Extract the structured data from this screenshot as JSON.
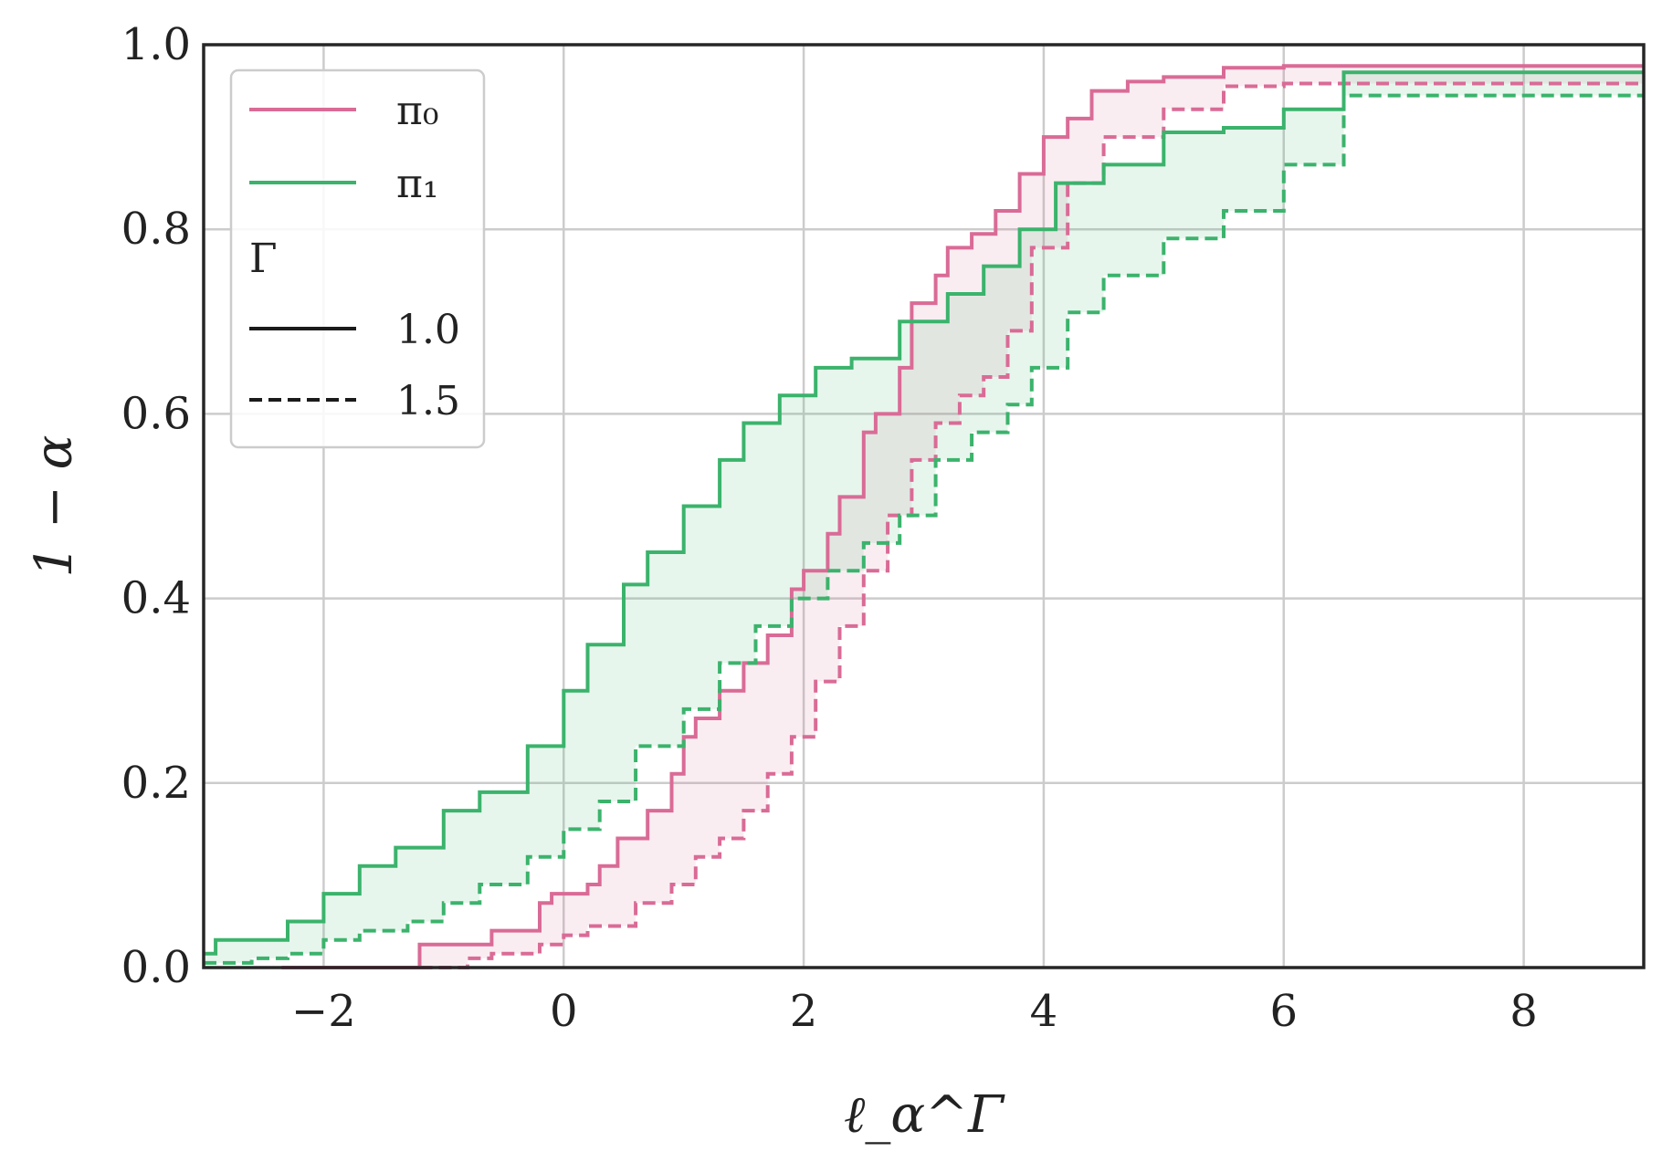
{
  "chart_data": {
    "type": "line",
    "title": "",
    "xlabel": "ℓ_α^Γ",
    "ylabel": "1 − α",
    "xlim": [
      -3,
      9
    ],
    "ylim": [
      0,
      1
    ],
    "xticks": [
      -2,
      0,
      2,
      4,
      6,
      8
    ],
    "xtick_labels": [
      "−2",
      "0",
      "2",
      "4",
      "6",
      "8"
    ],
    "yticks": [
      0.0,
      0.2,
      0.4,
      0.6,
      0.8,
      1.0
    ],
    "ytick_labels": [
      "0.0",
      "0.2",
      "0.4",
      "0.6",
      "0.8",
      "1.0"
    ],
    "grid": true,
    "legend": {
      "placement": "top-left",
      "policy_entries": [
        {
          "label": "π₀",
          "color": "#d96b96"
        },
        {
          "label": "π₁",
          "color": "#3bb36c"
        }
      ],
      "gamma_title": "Γ",
      "gamma_entries": [
        {
          "label": "1.0",
          "style": "solid"
        },
        {
          "label": "1.5",
          "style": "dashed"
        }
      ]
    },
    "bands": [
      {
        "policy": "π₀",
        "color": "#d96b96",
        "lower_gamma": "1.5",
        "upper_gamma": "1.0"
      },
      {
        "policy": "π₁",
        "color": "#3bb36c",
        "lower_gamma": "1.5",
        "upper_gamma": "1.0"
      }
    ],
    "series": [
      {
        "policy": "π₀",
        "gamma": "1.0",
        "color": "#d96b96",
        "dash": "solid",
        "x": [
          -2.35,
          -1.3,
          -1.2,
          -0.6,
          -0.6,
          -0.2,
          -0.1,
          0.0,
          0.2,
          0.3,
          0.45,
          0.7,
          0.9,
          1.0,
          1.1,
          1.3,
          1.5,
          1.7,
          1.9,
          2.0,
          2.2,
          2.3,
          2.5,
          2.6,
          2.8,
          2.9,
          3.1,
          3.2,
          3.4,
          3.6,
          3.8,
          4.0,
          4.2,
          4.4,
          4.7,
          5.0,
          5.5,
          6.0,
          9.0
        ],
        "y": [
          0.0,
          0.0,
          0.025,
          0.025,
          0.04,
          0.07,
          0.08,
          0.08,
          0.09,
          0.11,
          0.14,
          0.17,
          0.21,
          0.25,
          0.27,
          0.3,
          0.33,
          0.36,
          0.41,
          0.43,
          0.47,
          0.51,
          0.58,
          0.6,
          0.65,
          0.72,
          0.75,
          0.78,
          0.795,
          0.82,
          0.86,
          0.9,
          0.92,
          0.95,
          0.96,
          0.965,
          0.975,
          0.977,
          0.977
        ]
      },
      {
        "policy": "π₀",
        "gamma": "1.5",
        "color": "#d96b96",
        "dash": "dashed",
        "x": [
          -1.2,
          -0.8,
          -0.6,
          -0.2,
          0.0,
          0.2,
          0.6,
          0.9,
          1.1,
          1.3,
          1.5,
          1.7,
          1.9,
          2.1,
          2.3,
          2.5,
          2.7,
          2.9,
          3.1,
          3.3,
          3.5,
          3.7,
          3.9,
          4.2,
          4.5,
          5.0,
          5.5,
          6.0,
          9.0
        ],
        "y": [
          0.0,
          0.01,
          0.015,
          0.025,
          0.035,
          0.045,
          0.07,
          0.09,
          0.12,
          0.14,
          0.17,
          0.21,
          0.25,
          0.31,
          0.37,
          0.43,
          0.49,
          0.55,
          0.59,
          0.62,
          0.64,
          0.69,
          0.78,
          0.85,
          0.9,
          0.93,
          0.955,
          0.958,
          0.958
        ]
      },
      {
        "policy": "π₁",
        "gamma": "1.0",
        "color": "#3bb36c",
        "dash": "solid",
        "x": [
          -3.0,
          -2.9,
          -2.6,
          -2.3,
          -2.0,
          -1.7,
          -1.4,
          -1.0,
          -0.7,
          -0.3,
          0.0,
          0.2,
          0.5,
          0.7,
          1.0,
          1.3,
          1.5,
          1.8,
          2.1,
          2.4,
          2.8,
          3.2,
          3.5,
          3.8,
          4.1,
          4.5,
          5.0,
          5.5,
          6.0,
          6.5,
          9.0
        ],
        "y": [
          0.015,
          0.03,
          0.03,
          0.05,
          0.08,
          0.11,
          0.13,
          0.17,
          0.19,
          0.24,
          0.3,
          0.35,
          0.415,
          0.45,
          0.5,
          0.55,
          0.59,
          0.62,
          0.65,
          0.66,
          0.7,
          0.73,
          0.76,
          0.8,
          0.85,
          0.87,
          0.905,
          0.91,
          0.93,
          0.97,
          0.97
        ]
      },
      {
        "policy": "π₁",
        "gamma": "1.5",
        "color": "#3bb36c",
        "dash": "dashed",
        "x": [
          -3.0,
          -2.6,
          -2.3,
          -2.0,
          -1.7,
          -1.3,
          -1.0,
          -0.7,
          -0.3,
          0.0,
          0.3,
          0.6,
          1.0,
          1.3,
          1.6,
          1.9,
          2.2,
          2.5,
          2.8,
          3.1,
          3.4,
          3.7,
          3.9,
          4.2,
          4.5,
          5.0,
          5.5,
          6.0,
          6.5,
          9.0
        ],
        "y": [
          0.005,
          0.01,
          0.015,
          0.03,
          0.04,
          0.05,
          0.07,
          0.09,
          0.12,
          0.15,
          0.18,
          0.24,
          0.28,
          0.33,
          0.37,
          0.4,
          0.43,
          0.46,
          0.49,
          0.55,
          0.58,
          0.61,
          0.65,
          0.71,
          0.75,
          0.79,
          0.82,
          0.87,
          0.945,
          0.945
        ]
      }
    ]
  }
}
